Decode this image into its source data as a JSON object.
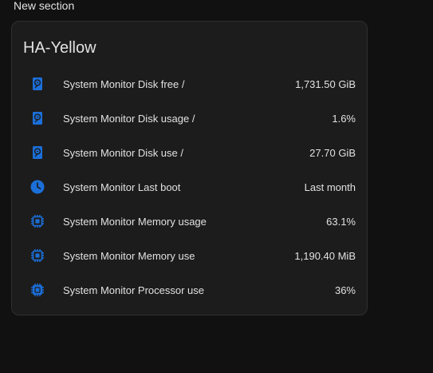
{
  "section": {
    "title": "New section"
  },
  "card": {
    "title": "HA-Yellow",
    "accent_color": "#1b6fd9",
    "entities": [
      {
        "icon": "harddisk-icon",
        "label": "System Monitor Disk free /",
        "value": "1,731.50 GiB"
      },
      {
        "icon": "harddisk-icon",
        "label": "System Monitor Disk usage /",
        "value": "1.6%"
      },
      {
        "icon": "harddisk-icon",
        "label": "System Monitor Disk use /",
        "value": "27.70 GiB"
      },
      {
        "icon": "clock-icon",
        "label": "System Monitor Last boot",
        "value": "Last month"
      },
      {
        "icon": "memory-icon",
        "label": "System Monitor Memory usage",
        "value": "63.1%"
      },
      {
        "icon": "memory-icon",
        "label": "System Monitor Memory use",
        "value": "1,190.40 MiB"
      },
      {
        "icon": "cpu-icon",
        "label": "System Monitor Processor use",
        "value": "36%"
      }
    ]
  }
}
